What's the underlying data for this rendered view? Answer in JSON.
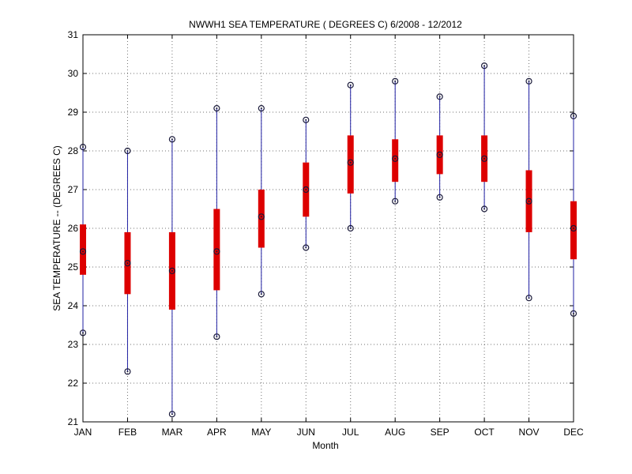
{
  "chart_data": {
    "type": "box",
    "title": "NWWH1  SEA TEMPERATURE ( DEGREES C) 6/2008 - 12/2012",
    "xlabel": "Month",
    "ylabel": "SEA TEMPERATURE -- (DEGREES C)",
    "ylim": [
      21,
      31
    ],
    "yticks": [
      21,
      22,
      23,
      24,
      25,
      26,
      27,
      28,
      29,
      30,
      31
    ],
    "grid": true,
    "categories": [
      "JAN",
      "FEB",
      "MAR",
      "APR",
      "MAY",
      "JUN",
      "JUL",
      "AUG",
      "SEP",
      "OCT",
      "NOV",
      "DEC"
    ],
    "series": [
      {
        "min": [
          23.3,
          22.3,
          21.2,
          23.2,
          24.3,
          25.5,
          26.0,
          26.7,
          26.8,
          26.5,
          24.2,
          23.8
        ],
        "q1": [
          24.8,
          24.3,
          23.9,
          24.4,
          25.5,
          26.3,
          26.9,
          27.2,
          27.4,
          27.2,
          25.9,
          25.2
        ],
        "median": [
          25.4,
          25.1,
          24.9,
          25.4,
          26.3,
          27.0,
          27.7,
          27.8,
          27.9,
          27.8,
          26.7,
          26.0
        ],
        "q3": [
          26.1,
          25.9,
          25.9,
          26.5,
          27.0,
          27.7,
          28.4,
          28.3,
          28.4,
          28.4,
          27.5,
          26.7
        ],
        "max": [
          28.1,
          28.0,
          28.3,
          29.1,
          29.1,
          28.8,
          29.7,
          29.8,
          29.4,
          30.2,
          29.8,
          28.9
        ]
      }
    ]
  }
}
